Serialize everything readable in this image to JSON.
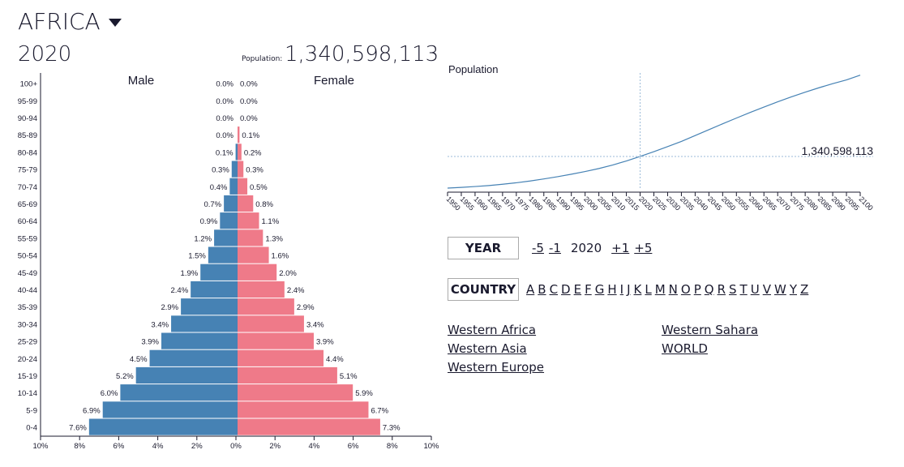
{
  "header": {
    "region": "AFRICA",
    "year": "2020",
    "population_label": "Population:",
    "population": "1,340,598,113"
  },
  "controls": {
    "year_label": "YEAR",
    "minus5": "-5",
    "minus1": "-1",
    "current_year": "2020",
    "plus1": "+1",
    "plus5": "+5",
    "country_label": "COUNTRY",
    "letters": [
      "A",
      "B",
      "C",
      "D",
      "E",
      "F",
      "G",
      "H",
      "I",
      "J",
      "K",
      "L",
      "M",
      "N",
      "O",
      "P",
      "Q",
      "R",
      "S",
      "T",
      "U",
      "V",
      "W",
      "Y",
      "Z"
    ],
    "regions": [
      "Western Africa",
      "Western Sahara",
      "Western Asia",
      "WORLD",
      "Western Europe"
    ]
  },
  "chart_data": [
    {
      "type": "bar",
      "subtype": "population-pyramid",
      "male_label": "Male",
      "female_label": "Female",
      "categories": [
        "100+",
        "95-99",
        "90-94",
        "85-89",
        "80-84",
        "75-79",
        "70-74",
        "65-69",
        "60-64",
        "55-59",
        "50-54",
        "45-49",
        "40-44",
        "35-39",
        "30-34",
        "25-29",
        "20-24",
        "15-19",
        "10-14",
        "5-9",
        "0-4"
      ],
      "series": [
        {
          "name": "Male",
          "color": "#4682b4",
          "values": [
            0.0,
            0.0,
            0.0,
            0.0,
            0.1,
            0.3,
            0.4,
            0.7,
            0.9,
            1.2,
            1.5,
            1.9,
            2.4,
            2.9,
            3.4,
            3.9,
            4.5,
            5.2,
            6.0,
            6.9,
            7.6
          ]
        },
        {
          "name": "Female",
          "color": "#ef7a89",
          "values": [
            0.0,
            0.0,
            0.0,
            0.1,
            0.2,
            0.3,
            0.5,
            0.8,
            1.1,
            1.3,
            1.6,
            2.0,
            2.4,
            2.9,
            3.4,
            3.9,
            4.4,
            5.1,
            5.9,
            6.7,
            7.3
          ]
        }
      ],
      "xticks": [
        "10%",
        "8%",
        "6%",
        "4%",
        "2%",
        "0%",
        "2%",
        "4%",
        "6%",
        "8%",
        "10%"
      ],
      "xlim": [
        -10,
        10
      ]
    },
    {
      "type": "line",
      "ylabel": "Population",
      "x": [
        1950,
        1955,
        1960,
        1965,
        1970,
        1975,
        1980,
        1985,
        1990,
        1995,
        2000,
        2005,
        2010,
        2015,
        2020,
        2025,
        2030,
        2035,
        2040,
        2045,
        2050,
        2055,
        2060,
        2065,
        2070,
        2075,
        2080,
        2085,
        2090,
        2095,
        2100
      ],
      "values_billions": [
        0.228,
        0.254,
        0.283,
        0.318,
        0.363,
        0.416,
        0.478,
        0.551,
        0.63,
        0.717,
        0.811,
        0.916,
        1.039,
        1.182,
        1.341,
        1.511,
        1.688,
        1.871,
        2.077,
        2.284,
        2.489,
        2.691,
        2.888,
        3.079,
        3.262,
        3.437,
        3.602,
        3.757,
        3.901,
        4.034,
        4.2
      ],
      "highlight_year": 2020,
      "highlight_label": "1,340,598,113",
      "color": "#4682b4"
    }
  ]
}
